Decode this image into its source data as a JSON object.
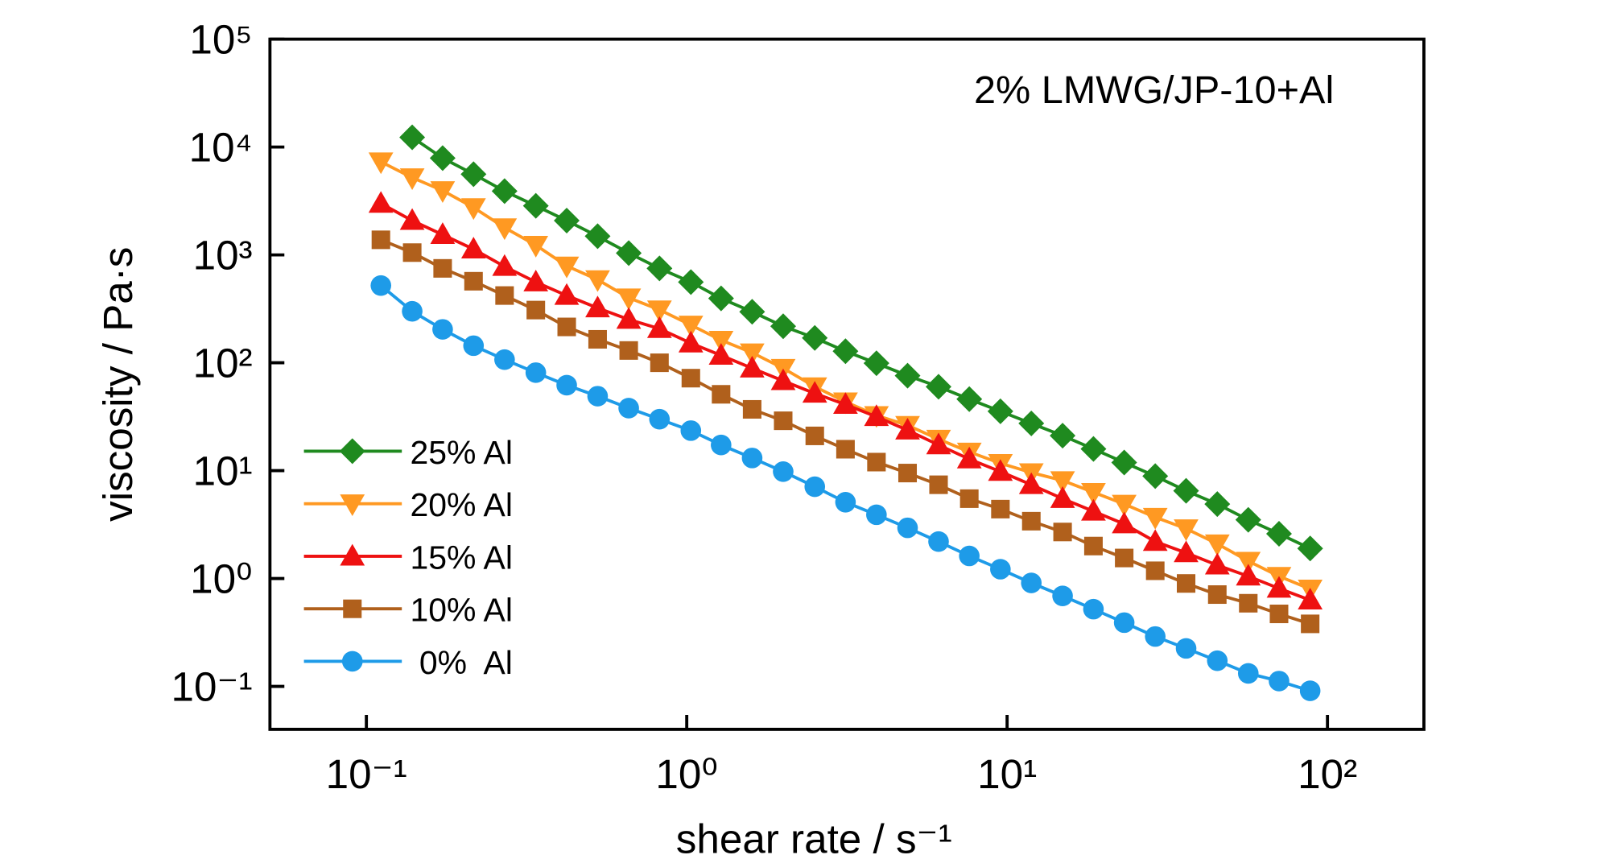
{
  "chart_data": {
    "type": "line",
    "annotation": "2% LMWG/JP-10+Al",
    "xlabel": "shear rate / s⁻¹",
    "ylabel": "viscosity / Pa·s",
    "xscale": "log",
    "yscale": "log",
    "xlim": [
      0.05,
      200
    ],
    "ylim": [
      0.04,
      100000
    ],
    "xticks": [
      {
        "value": 0.1,
        "label": "10⁻¹"
      },
      {
        "value": 1,
        "label": "10⁰"
      },
      {
        "value": 10,
        "label": "10¹"
      },
      {
        "value": 100,
        "label": "10²"
      }
    ],
    "yticks": [
      {
        "value": 0.1,
        "label": "10⁻¹"
      },
      {
        "value": 1,
        "label": "10⁰"
      },
      {
        "value": 10,
        "label": "10¹"
      },
      {
        "value": 100,
        "label": "10²"
      },
      {
        "value": 1000,
        "label": "10³"
      },
      {
        "value": 10000,
        "label": "10⁴"
      },
      {
        "value": 100000,
        "label": "10⁵"
      }
    ],
    "legend": "lower left",
    "x": [
      0.111,
      0.139,
      0.173,
      0.216,
      0.27,
      0.338,
      0.422,
      0.527,
      0.659,
      0.822,
      1.03,
      1.28,
      1.6,
      2.0,
      2.51,
      3.13,
      3.91,
      4.89,
      6.11,
      7.62,
      9.53,
      11.9,
      14.9,
      18.6,
      23.2,
      29.0,
      36.2,
      45.3,
      56.6,
      70.6,
      88.3
    ],
    "series": [
      {
        "name": "25% Al",
        "color": "#1f8a1f",
        "marker": "diamond",
        "values": [
          null,
          12300,
          7900,
          5600,
          3900,
          2850,
          2080,
          1490,
          1040,
          750,
          560,
          395,
          297,
          218,
          170,
          128,
          99,
          76,
          60,
          46,
          35.5,
          27.4,
          21.1,
          15.9,
          11.9,
          8.9,
          6.5,
          4.9,
          3.5,
          2.6,
          1.9
        ]
      },
      {
        "name": "20% Al",
        "color": "#ff9922",
        "marker": "triangle-down",
        "values": [
          7300,
          5200,
          3950,
          2750,
          1790,
          1230,
          790,
          590,
          400,
          310,
          224,
          162,
          124,
          89,
          60,
          43.5,
          32.5,
          26.3,
          19.6,
          14.9,
          11.7,
          9.6,
          8.1,
          6.3,
          4.9,
          3.7,
          2.9,
          2.1,
          1.45,
          1.05,
          0.8
        ]
      },
      {
        "name": "15% Al",
        "color": "#ee1111",
        "marker": "triangle-up",
        "values": [
          3000,
          2080,
          1540,
          1130,
          780,
          560,
          420,
          322,
          252,
          207,
          152,
          117,
          89,
          68,
          52,
          41,
          31.6,
          23.7,
          17.3,
          12.8,
          9.8,
          7.4,
          5.5,
          4.2,
          3.2,
          2.2,
          1.73,
          1.33,
          1.05,
          0.81,
          0.63
        ]
      },
      {
        "name": "10% Al",
        "color": "#b0601c",
        "marker": "square",
        "values": [
          1380,
          1050,
          750,
          570,
          420,
          308,
          215,
          165,
          130,
          100,
          72,
          51,
          37,
          29,
          21,
          15.8,
          12.0,
          9.5,
          7.4,
          5.5,
          4.4,
          3.4,
          2.7,
          2.0,
          1.55,
          1.18,
          0.9,
          0.71,
          0.59,
          0.47,
          0.38
        ]
      },
      {
        "name": " 0%  Al",
        "color": "#1e9be8",
        "marker": "circle",
        "values": [
          520,
          300,
          204,
          144,
          107,
          81,
          62,
          49,
          38,
          30,
          23.5,
          17.3,
          13.1,
          9.8,
          7.1,
          5.1,
          3.9,
          2.95,
          2.2,
          1.62,
          1.22,
          0.91,
          0.69,
          0.52,
          0.39,
          0.29,
          0.225,
          0.173,
          0.132,
          0.112,
          0.091
        ]
      }
    ]
  }
}
